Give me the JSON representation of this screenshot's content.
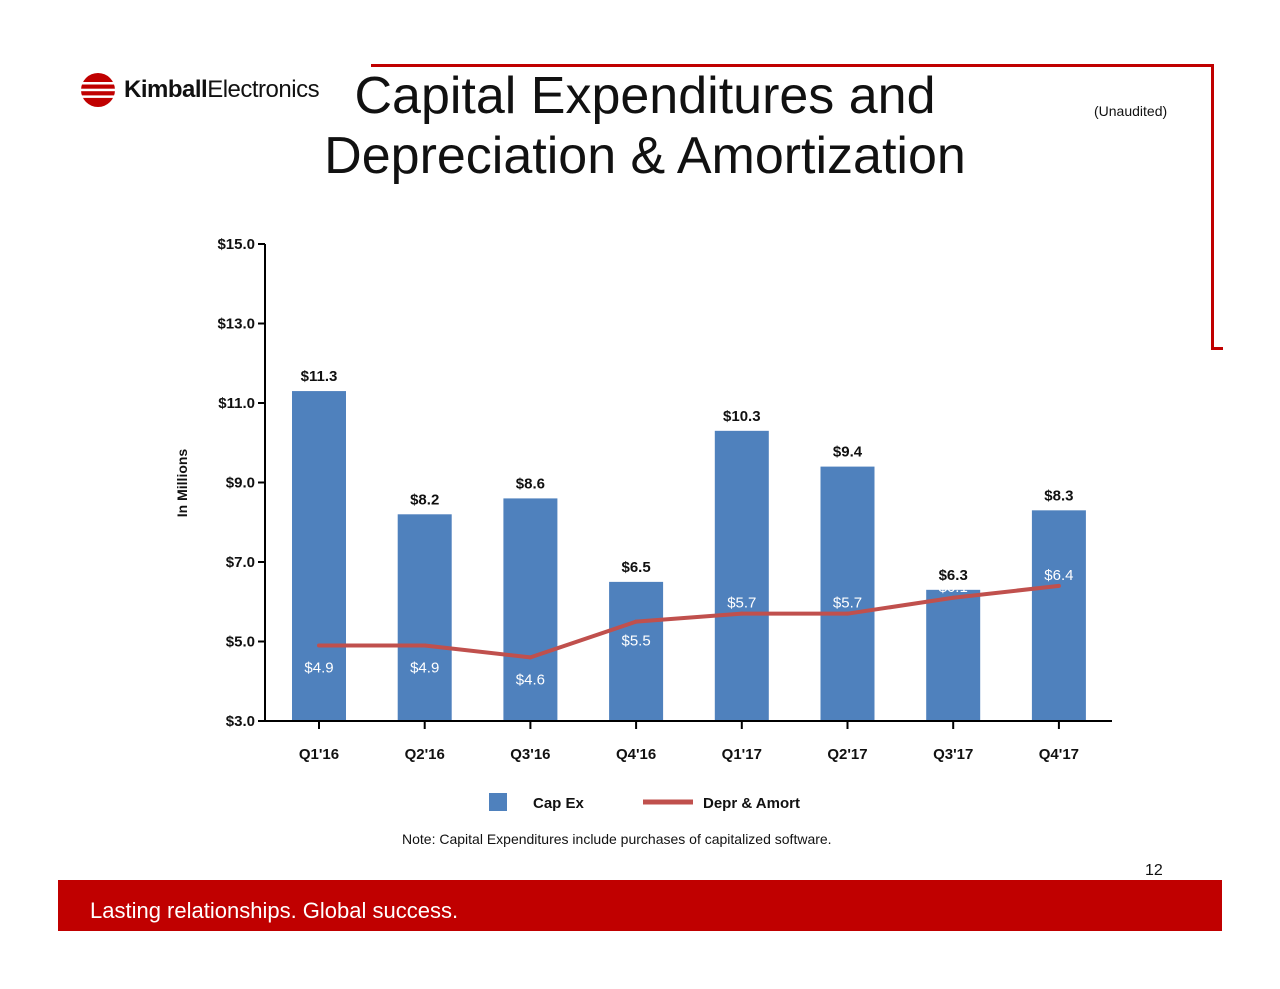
{
  "header": {
    "logo_text_bold": "Kimball",
    "logo_text_regular": "Electronics",
    "title_line1": "Capital Expenditures and",
    "title_line2": "Depreciation & Amortization",
    "unaudited": "(Unaudited)"
  },
  "colors": {
    "accent_red": "#c00000",
    "bar_blue": "#4f81bd",
    "line_red": "#c0504d"
  },
  "chart_data": {
    "type": "bar",
    "title": "",
    "xlabel": "",
    "ylabel": "In Millions",
    "ylim": [
      3,
      15
    ],
    "y_ticks": [
      "$3.0",
      "$5.0",
      "$7.0",
      "$9.0",
      "$11.0",
      "$13.0",
      "$15.0"
    ],
    "categories": [
      "Q1'16",
      "Q2'16",
      "Q3'16",
      "Q4'16",
      "Q1'17",
      "Q2'17",
      "Q3'17",
      "Q4'17"
    ],
    "series": [
      {
        "name": "Cap Ex",
        "type": "bar",
        "values": [
          11.3,
          8.2,
          8.6,
          6.5,
          10.3,
          9.4,
          6.3,
          8.3
        ],
        "labels": [
          "$11.3",
          "$8.2",
          "$8.6",
          "$6.5",
          "$10.3",
          "$9.4",
          "$6.3",
          "$8.3"
        ]
      },
      {
        "name": "Depr & Amort",
        "type": "line",
        "values": [
          4.9,
          4.9,
          4.6,
          5.5,
          5.7,
          5.7,
          6.1,
          6.4
        ],
        "labels": [
          "$4.9",
          "$4.9",
          "$4.6",
          "$5.5",
          "$5.7",
          "$5.7",
          "$6.1",
          "$6.4"
        ]
      }
    ],
    "legend": "bottom-center",
    "grid": false
  },
  "note": "Note:  Capital Expenditures include purchases of capitalized software.",
  "page_number": "12",
  "footer": {
    "tagline": "Lasting relationships. Global success."
  }
}
